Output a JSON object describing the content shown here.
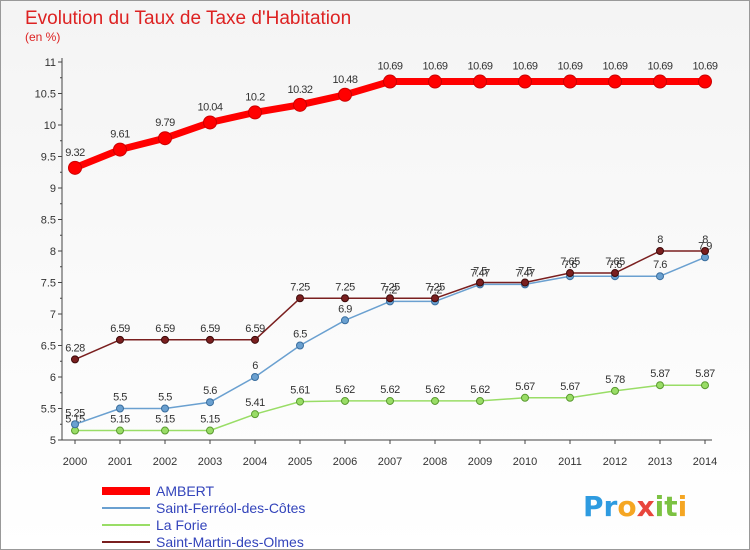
{
  "chart_data": {
    "type": "line",
    "title": "Evolution du Taux de Taxe d'Habitation",
    "subtitle": "(en %)",
    "x": [
      2000,
      2001,
      2002,
      2003,
      2004,
      2005,
      2006,
      2007,
      2008,
      2009,
      2010,
      2011,
      2012,
      2013,
      2014
    ],
    "ylim": [
      5,
      11
    ],
    "yticks": [
      5,
      5.5,
      6,
      6.5,
      7,
      7.5,
      8,
      8.5,
      9,
      9.5,
      10,
      10.5,
      11
    ],
    "ytick_labels": [
      "5",
      "5.5",
      "6",
      "6.5",
      "7",
      "7.5",
      "8",
      "8.5",
      "9",
      "9.5",
      "10",
      "10.5",
      "11"
    ],
    "grid": false,
    "legend_position": "bottom-left",
    "series": [
      {
        "name": "AMBERT",
        "color": "#ff0000",
        "values": [
          9.32,
          9.61,
          9.79,
          10.04,
          10.2,
          10.32,
          10.48,
          10.69,
          10.69,
          10.69,
          10.69,
          10.69,
          10.69,
          10.69,
          10.69
        ],
        "labels": [
          "9.32",
          "9.61",
          "9.79",
          "10.04",
          "10.2",
          "10.32",
          "10.48",
          "10.69",
          "10.69",
          "10.69",
          "10.69",
          "10.69",
          "10.69",
          "10.69",
          "10.69"
        ]
      },
      {
        "name": "Saint-Ferréol-des-Côtes",
        "color": "#6aa0d0",
        "values": [
          5.25,
          5.5,
          5.5,
          5.6,
          6,
          6.5,
          6.9,
          7.2,
          7.2,
          7.47,
          7.47,
          7.6,
          7.6,
          7.6,
          7.9
        ],
        "labels": [
          "5.25",
          "5.5",
          "5.5",
          "5.6",
          "6",
          "6.5",
          "6.9",
          "7.2",
          "7.2",
          "7.47",
          "7.47",
          "7.6",
          "7.6",
          "7.6",
          "7.9"
        ]
      },
      {
        "name": "La Forie",
        "color": "#99dd66",
        "values": [
          5.15,
          5.15,
          5.15,
          5.15,
          5.41,
          5.61,
          5.62,
          5.62,
          5.62,
          5.62,
          5.67,
          5.67,
          5.78,
          5.87,
          5.87
        ],
        "labels": [
          "5.15",
          "5.15",
          "5.15",
          "5.15",
          "5.41",
          "5.61",
          "5.62",
          "5.62",
          "5.62",
          "5.62",
          "5.67",
          "5.67",
          "5.78",
          "5.87",
          "5.87"
        ]
      },
      {
        "name": "Saint-Martin-des-Olmes",
        "color": "#7a1f1f",
        "values": [
          6.28,
          6.59,
          6.59,
          6.59,
          6.59,
          7.25,
          7.25,
          7.25,
          7.25,
          7.5,
          7.5,
          7.65,
          7.65,
          8,
          8
        ],
        "labels": [
          "6.28",
          "6.59",
          "6.59",
          "6.59",
          "6.59",
          "7.25",
          "7.25",
          "7.25",
          "7.25",
          "7.5",
          "7.5",
          "7.65",
          "7.65",
          "8",
          "8"
        ]
      }
    ]
  },
  "colors": {
    "title": "#dd2222",
    "axis": "#444444",
    "tick_text": "#333333",
    "value_text": "#333333",
    "legend_text": "#3344bb",
    "border": "#999999"
  },
  "logo": {
    "text": "Proxiti",
    "icon": "proxiti-logo"
  }
}
